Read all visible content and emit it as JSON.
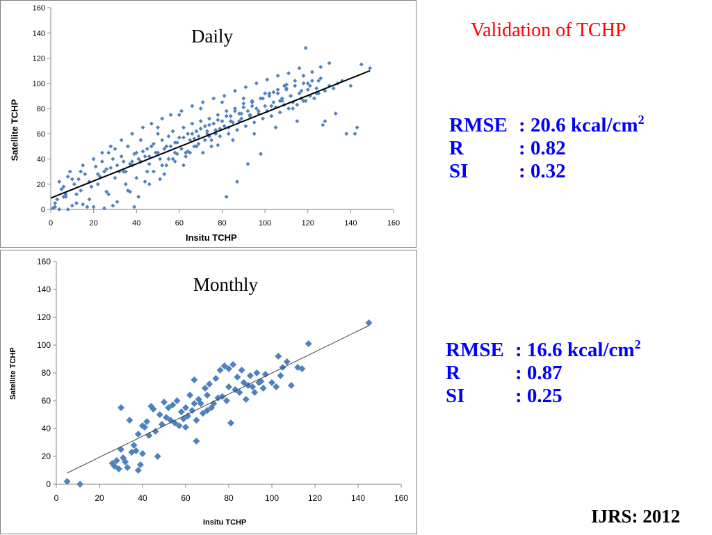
{
  "heading": "Validation of TCHP",
  "footer": "IJRS: 2012",
  "stats_daily": {
    "rmse_key": "RMSE",
    "rmse_val": ": 20.6 kcal/cm",
    "rmse_sup": "2",
    "r_key": "R",
    "r_val": ":  0.82",
    "si_key": "SI",
    "si_val": ":  0.32"
  },
  "stats_monthly": {
    "rmse_key": "RMSE",
    "rmse_val": ": 16.6 kcal/cm",
    "rmse_sup": "2",
    "r_key": "R",
    "r_val": ":  0.87",
    "si_key": "SI",
    "si_val": ":  0.25"
  },
  "colors": {
    "points": "#4f81bd",
    "fit_daily": "#000000",
    "fit_monthly": "#404040",
    "heading": "#ff0000",
    "stats": "#0000ff"
  },
  "chart_data": [
    {
      "type": "scatter",
      "title": "Daily",
      "xlabel": "Insitu  TCHP",
      "ylabel": "Satellite   TCHP",
      "xlim": [
        0,
        160
      ],
      "ylim": [
        0,
        160
      ],
      "xticks": [
        0,
        20,
        40,
        60,
        80,
        100,
        120,
        140,
        160
      ],
      "yticks": [
        0,
        20,
        40,
        60,
        80,
        100,
        120,
        140,
        160
      ],
      "grid": false,
      "marker": "diamond",
      "fit_line": {
        "x": [
          0,
          149
        ],
        "y": [
          9,
          110
        ]
      },
      "points_x": [
        2,
        4,
        6,
        8,
        10,
        12,
        14,
        15,
        18,
        20,
        22,
        24,
        25,
        27,
        28,
        30,
        31,
        33,
        35,
        36,
        38,
        40,
        41,
        42,
        44,
        45,
        46,
        48,
        49,
        50,
        51,
        52,
        53,
        54,
        55,
        56,
        57,
        58,
        59,
        60,
        61,
        62,
        63,
        64,
        65,
        66,
        67,
        68,
        69,
        70,
        71,
        72,
        73,
        74,
        75,
        76,
        77,
        78,
        79,
        80,
        81,
        82,
        83,
        84,
        85,
        86,
        87,
        88,
        89,
        90,
        91,
        92,
        93,
        94,
        95,
        96,
        97,
        98,
        99,
        100,
        101,
        102,
        103,
        104,
        105,
        106,
        107,
        108,
        109,
        110,
        111,
        112,
        113,
        114,
        115,
        116,
        117,
        118,
        119,
        120,
        121,
        122,
        123,
        124,
        125,
        126,
        128,
        130,
        132,
        134,
        136,
        140,
        142,
        145,
        149,
        3,
        5,
        7,
        9,
        11,
        13,
        16,
        19,
        21,
        23,
        26,
        29,
        32,
        34,
        37,
        39,
        43,
        47,
        2,
        6,
        10,
        14,
        18,
        22,
        26,
        30,
        34,
        38,
        42,
        46,
        50,
        54,
        58,
        62,
        66,
        70,
        74,
        78,
        82,
        86,
        90,
        94,
        98,
        102,
        106,
        110,
        114,
        118,
        122,
        126,
        130,
        45,
        55,
        65,
        75,
        85,
        95,
        105,
        115,
        50,
        60,
        70,
        80,
        90,
        100,
        110,
        120,
        35,
        40,
        48,
        52,
        57,
        63,
        68,
        72,
        77,
        83,
        88,
        93,
        97,
        103,
        108,
        112,
        117,
        121,
        125,
        24,
        28,
        33,
        38,
        43,
        47,
        52,
        56,
        61,
        66,
        71,
        76,
        81,
        86,
        91,
        96,
        101,
        106,
        111,
        116,
        8,
        12,
        20,
        27,
        31,
        36,
        41,
        44,
        58,
        64,
        69,
        74,
        79,
        84,
        89,
        94,
        99,
        104,
        109,
        113,
        118,
        124,
        128,
        133,
        138,
        143,
        1,
        4,
        7,
        15,
        17,
        25,
        29,
        37,
        39,
        46,
        51,
        53,
        59,
        62,
        67,
        73,
        78,
        82,
        87,
        92,
        98,
        107,
        119,
        127
      ],
      "points_y": [
        5,
        22,
        18,
        26,
        24,
        12,
        30,
        35,
        22,
        40,
        28,
        38,
        30,
        45,
        33,
        48,
        35,
        42,
        30,
        50,
        38,
        45,
        40,
        55,
        42,
        48,
        36,
        52,
        45,
        60,
        40,
        55,
        48,
        35,
        58,
        50,
        62,
        45,
        53,
        57,
        48,
        65,
        42,
        60,
        55,
        68,
        50,
        62,
        58,
        70,
        45,
        66,
        60,
        72,
        55,
        68,
        63,
        75,
        58,
        70,
        66,
        78,
        60,
        74,
        69,
        80,
        63,
        76,
        72,
        84,
        66,
        78,
        74,
        86,
        69,
        80,
        76,
        88,
        72,
        82,
        78,
        90,
        74,
        85,
        81,
        92,
        77,
        88,
        83,
        95,
        80,
        90,
        85,
        98,
        83,
        92,
        88,
        100,
        86,
        95,
        90,
        102,
        88,
        96,
        92,
        104,
        94,
        98,
        96,
        100,
        102,
        98,
        60,
        115,
        112,
        8,
        16,
        12,
        30,
        20,
        24,
        28,
        18,
        34,
        26,
        32,
        40,
        30,
        38,
        36,
        44,
        46,
        50,
        2,
        10,
        3,
        15,
        8,
        20,
        14,
        25,
        30,
        35,
        38,
        42,
        45,
        50,
        53,
        57,
        60,
        64,
        67,
        71,
        74,
        78,
        81,
        85,
        88,
        92,
        95,
        99,
        102,
        106,
        109,
        113,
        116,
        30,
        40,
        45,
        50,
        55,
        60,
        65,
        70,
        65,
        75,
        80,
        85,
        88,
        92,
        96,
        100,
        20,
        25,
        30,
        35,
        40,
        45,
        50,
        55,
        60,
        65,
        70,
        75,
        78,
        82,
        86,
        90,
        94,
        98,
        102,
        45,
        50,
        55,
        60,
        65,
        68,
        72,
        75,
        78,
        82,
        85,
        88,
        90,
        94,
        97,
        100,
        103,
        106,
        108,
        112,
        0,
        5,
        2,
        12,
        6,
        15,
        10,
        22,
        38,
        46,
        52,
        58,
        64,
        70,
        76,
        82,
        88,
        93,
        98,
        80,
        86,
        92,
        70,
        76,
        60,
        65,
        1,
        0,
        10,
        4,
        2,
        1,
        3,
        14,
        2,
        20,
        24,
        28,
        44,
        35,
        56,
        62,
        51,
        10,
        22,
        36,
        44,
        86,
        128,
        67
      ]
    },
    {
      "type": "scatter",
      "title": "Monthly",
      "xlabel": "Insitu TCHP",
      "ylabel": "Satellite TCHP",
      "xlim": [
        0,
        160
      ],
      "ylim": [
        0,
        160
      ],
      "xticks": [
        0,
        20,
        40,
        60,
        80,
        100,
        120,
        140,
        160
      ],
      "yticks": [
        0,
        20,
        40,
        60,
        80,
        100,
        120,
        140,
        160
      ],
      "grid": false,
      "marker": "diamond",
      "fit_line": {
        "x": [
          5,
          145
        ],
        "y": [
          8,
          114
        ]
      },
      "points_x": [
        5,
        11,
        26,
        27,
        28,
        29,
        30,
        30,
        31,
        32,
        33,
        34,
        35,
        36,
        37,
        38,
        38,
        39,
        40,
        40,
        41,
        42,
        43,
        44,
        45,
        46,
        47,
        48,
        49,
        50,
        51,
        52,
        53,
        54,
        55,
        56,
        57,
        58,
        59,
        60,
        60,
        61,
        62,
        63,
        64,
        64,
        65,
        65,
        66,
        67,
        68,
        69,
        70,
        70,
        71,
        72,
        73,
        74,
        75,
        76,
        77,
        78,
        79,
        80,
        80,
        81,
        82,
        83,
        84,
        85,
        86,
        87,
        88,
        89,
        90,
        91,
        92,
        93,
        94,
        95,
        96,
        97,
        100,
        102,
        103,
        104,
        105,
        107,
        109,
        112,
        114,
        117,
        145
      ],
      "points_y": [
        2,
        0,
        15,
        13,
        17,
        11,
        25,
        55,
        19,
        16,
        12,
        46,
        23,
        28,
        24,
        10,
        36,
        14,
        42,
        22,
        41,
        45,
        35,
        56,
        54,
        38,
        20,
        50,
        43,
        59,
        48,
        55,
        46,
        57,
        44,
        60,
        42,
        52,
        47,
        55,
        41,
        49,
        64,
        53,
        58,
        75,
        46,
        31,
        61,
        58,
        51,
        69,
        53,
        64,
        72,
        55,
        58,
        76,
        62,
        82,
        63,
        85,
        60,
        70,
        83,
        44,
        86,
        68,
        77,
        66,
        82,
        73,
        61,
        71,
        78,
        70,
        66,
        80,
        73,
        74,
        69,
        79,
        73,
        70,
        92,
        78,
        84,
        88,
        71,
        84,
        83,
        101,
        116
      ]
    }
  ]
}
